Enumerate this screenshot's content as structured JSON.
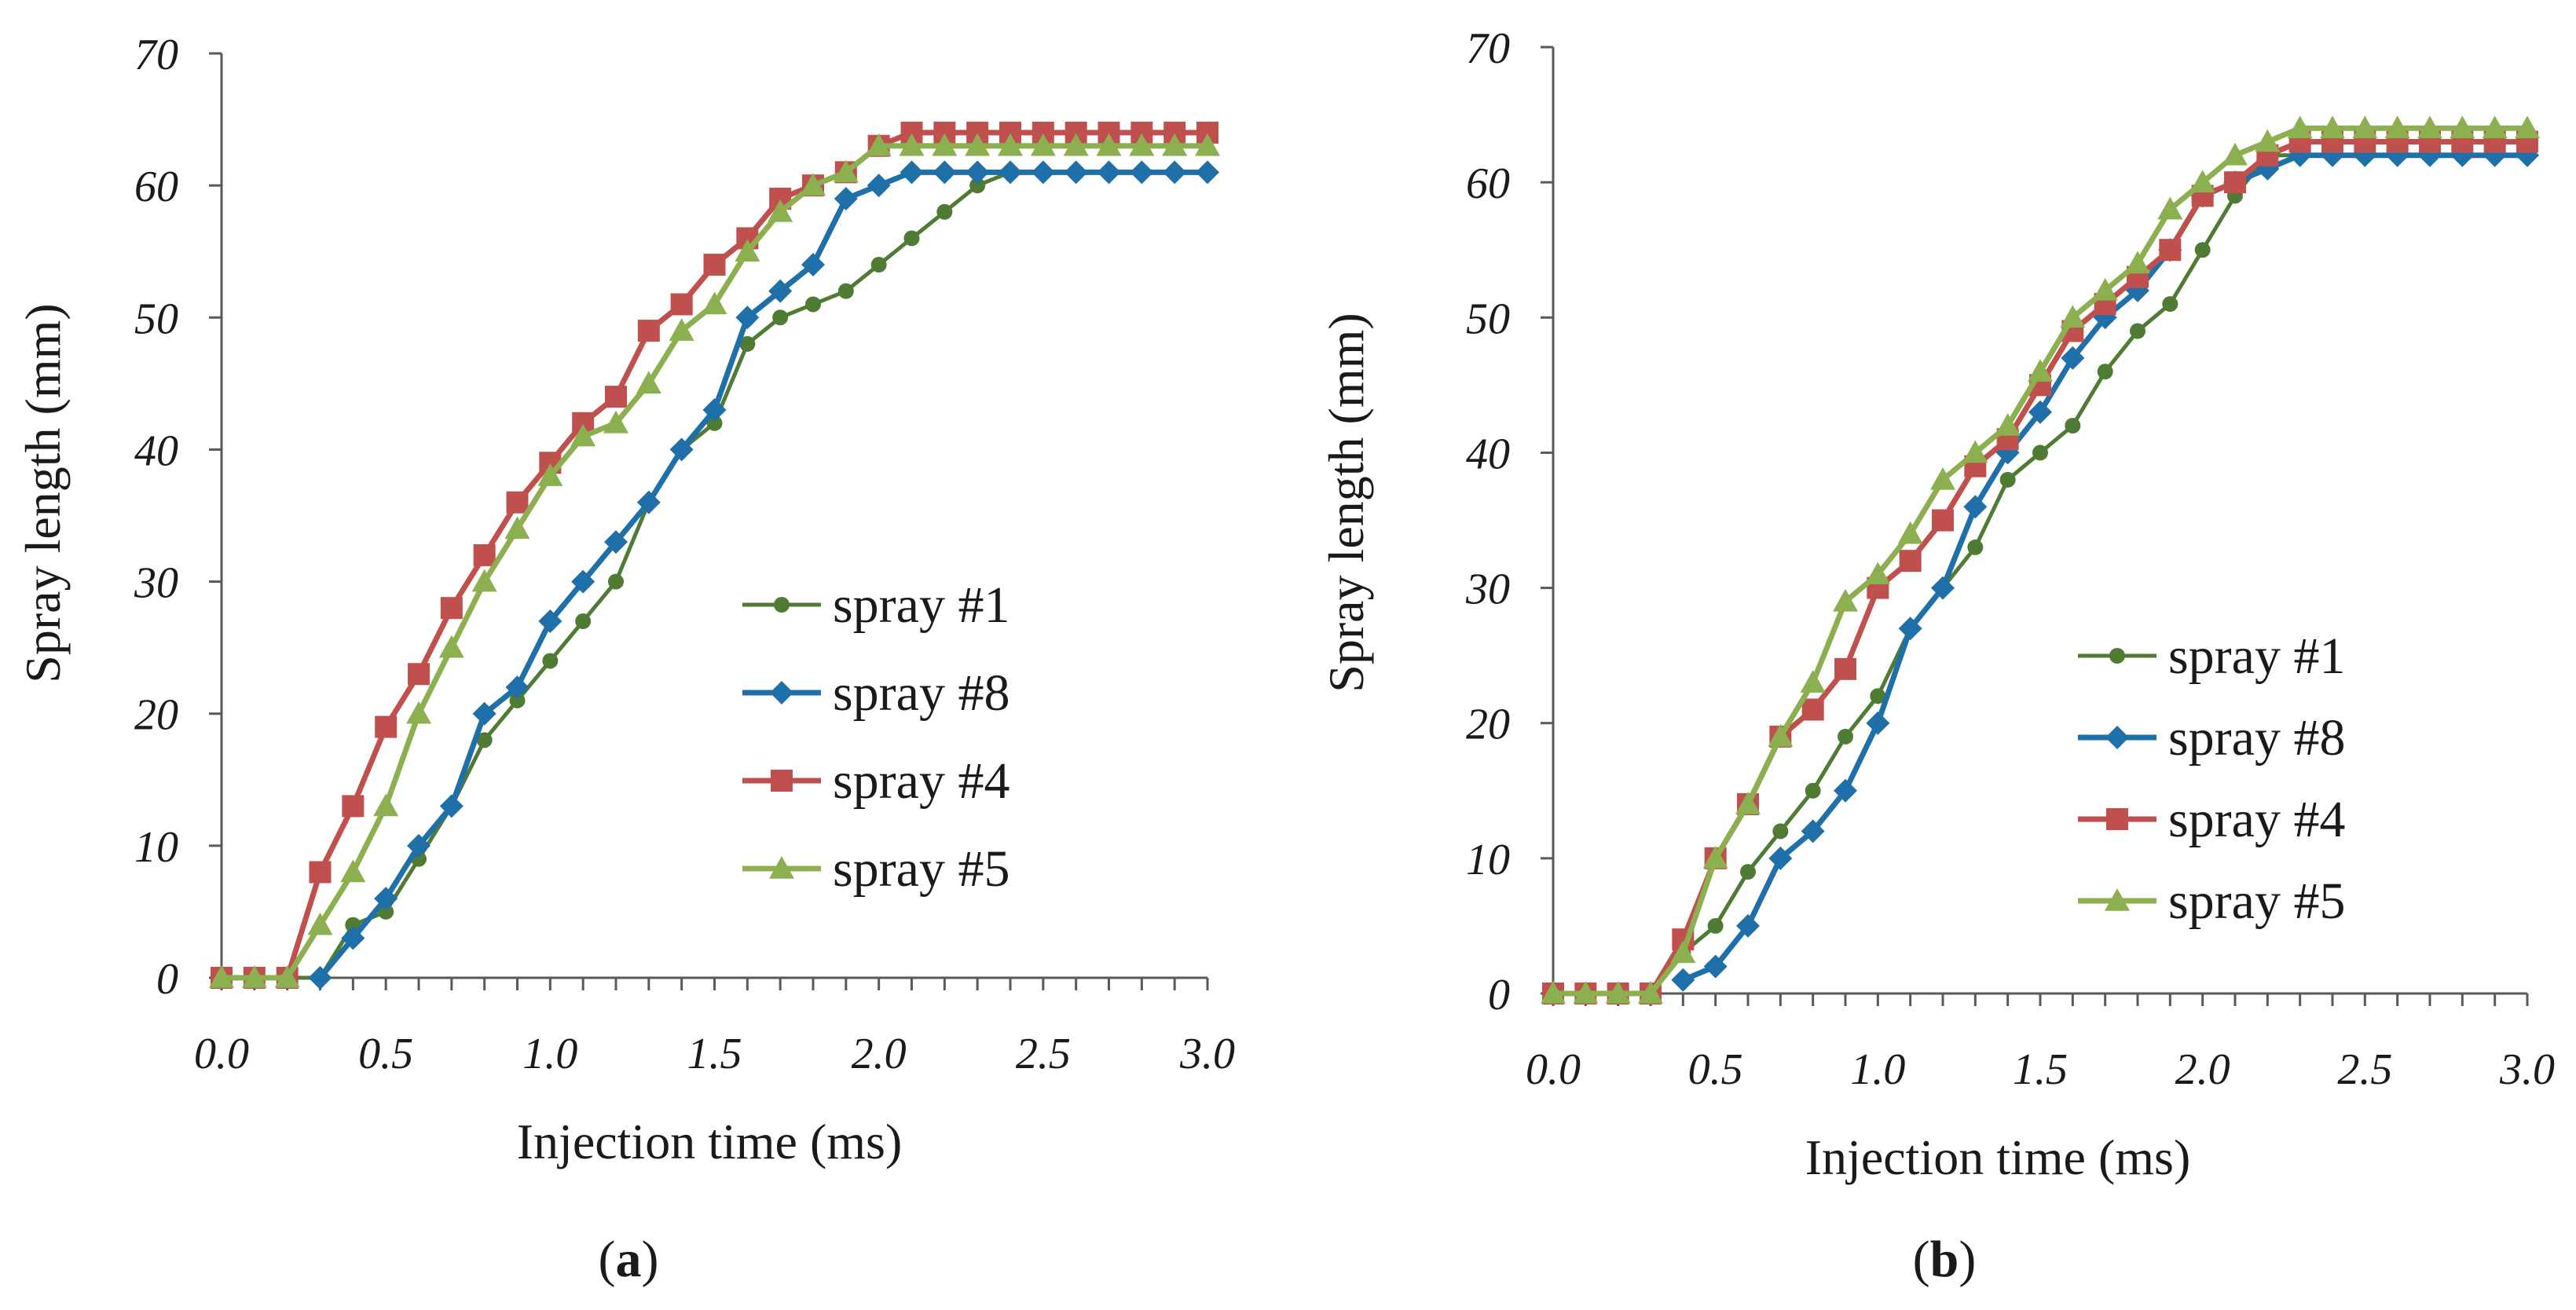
{
  "chart_data": [
    {
      "panel": "a",
      "type": "line",
      "panel_label": "a",
      "xlabel": "Injection time (ms)",
      "ylabel": "Spray length (mm)",
      "xlim": [
        0,
        3
      ],
      "ylim": [
        0,
        70
      ],
      "xticks": [
        "0.0",
        "0.5",
        "1.0",
        "1.5",
        "2.0",
        "2.5",
        "3.0"
      ],
      "yticks": [
        "0",
        "10",
        "20",
        "30",
        "40",
        "50",
        "60",
        "70"
      ],
      "x": [
        0.0,
        0.1,
        0.2,
        0.3,
        0.4,
        0.5,
        0.6,
        0.7,
        0.8,
        0.9,
        1.0,
        1.1,
        1.2,
        1.3,
        1.4,
        1.5,
        1.6,
        1.7,
        1.8,
        1.9,
        2.0,
        2.1,
        2.2,
        2.3,
        2.4,
        2.5,
        2.6,
        2.7,
        2.8,
        2.9,
        3.0
      ],
      "legend_position": "right",
      "grid": false,
      "series": [
        {
          "name": "spray #1",
          "color": "#4f7b35",
          "marker": "circle",
          "values": [
            0,
            0,
            0,
            0,
            4,
            5,
            9,
            13,
            18,
            21,
            24,
            27,
            30,
            36,
            40,
            42,
            48,
            50,
            51,
            52,
            54,
            56,
            58,
            60,
            61,
            61,
            61,
            61,
            61,
            61,
            61
          ]
        },
        {
          "name": "spray #8",
          "color": "#1f6fa8",
          "marker": "diamond",
          "values": [
            null,
            null,
            null,
            0,
            3,
            6,
            10,
            13,
            20,
            22,
            27,
            30,
            33,
            36,
            40,
            43,
            50,
            52,
            54,
            59,
            60,
            61,
            61,
            61,
            61,
            61,
            61,
            61,
            61,
            61,
            61
          ]
        },
        {
          "name": "spray #4",
          "color": "#c0504d",
          "marker": "square",
          "values": [
            0,
            0,
            0,
            8,
            13,
            19,
            23,
            28,
            32,
            36,
            39,
            42,
            44,
            49,
            51,
            54,
            56,
            59,
            60,
            61,
            63,
            64,
            64,
            64,
            64,
            64,
            64,
            64,
            64,
            64,
            64
          ]
        },
        {
          "name": "spray #5",
          "color": "#8cb050",
          "marker": "triangle",
          "values": [
            0,
            0,
            0,
            4,
            8,
            13,
            20,
            25,
            30,
            34,
            38,
            41,
            42,
            45,
            49,
            51,
            55,
            58,
            60,
            61,
            63,
            63,
            63,
            63,
            63,
            63,
            63,
            63,
            63,
            63,
            63
          ]
        }
      ]
    },
    {
      "panel": "b",
      "type": "line",
      "panel_label": "b",
      "xlabel": "Injection time (ms)",
      "ylabel": "Spray length (mm)",
      "xlim": [
        0,
        3
      ],
      "ylim": [
        0,
        70
      ],
      "xticks": [
        "0.0",
        "0.5",
        "1.0",
        "1.5",
        "2.0",
        "2.5",
        "3.0"
      ],
      "yticks": [
        "0",
        "10",
        "20",
        "30",
        "40",
        "50",
        "60",
        "70"
      ],
      "x": [
        0.0,
        0.1,
        0.2,
        0.3,
        0.4,
        0.5,
        0.6,
        0.7,
        0.8,
        0.9,
        1.0,
        1.1,
        1.2,
        1.3,
        1.4,
        1.5,
        1.6,
        1.7,
        1.8,
        1.9,
        2.0,
        2.1,
        2.2,
        2.3,
        2.4,
        2.5,
        2.6,
        2.7,
        2.8,
        2.9,
        3.0
      ],
      "legend_position": "right",
      "grid": false,
      "series": [
        {
          "name": "spray #1",
          "color": "#4f7b35",
          "marker": "circle",
          "values": [
            0,
            0,
            0,
            0,
            3,
            5,
            9,
            12,
            15,
            19,
            22,
            27,
            30,
            33,
            38,
            40,
            42,
            46,
            49,
            51,
            55,
            59,
            62,
            62,
            62,
            62,
            62,
            62,
            62,
            62,
            62
          ]
        },
        {
          "name": "spray #8",
          "color": "#1f6fa8",
          "marker": "diamond",
          "values": [
            null,
            null,
            null,
            null,
            1,
            2,
            5,
            10,
            12,
            15,
            20,
            27,
            30,
            36,
            40,
            43,
            47,
            50,
            52,
            55,
            59,
            60,
            61,
            62,
            62,
            62,
            62,
            62,
            62,
            62,
            62
          ]
        },
        {
          "name": "spray #4",
          "color": "#c0504d",
          "marker": "square",
          "values": [
            0,
            0,
            0,
            0,
            4,
            10,
            14,
            19,
            21,
            24,
            30,
            32,
            35,
            39,
            41,
            45,
            49,
            51,
            53,
            55,
            59,
            60,
            62,
            63,
            63,
            63,
            63,
            63,
            63,
            63,
            63
          ]
        },
        {
          "name": "spray #5",
          "color": "#8cb050",
          "marker": "triangle",
          "values": [
            0,
            0,
            0,
            0,
            3,
            10,
            14,
            19,
            23,
            29,
            31,
            34,
            38,
            40,
            42,
            46,
            50,
            52,
            54,
            58,
            60,
            62,
            63,
            64,
            64,
            64,
            64,
            64,
            64,
            64,
            64
          ]
        }
      ]
    }
  ]
}
